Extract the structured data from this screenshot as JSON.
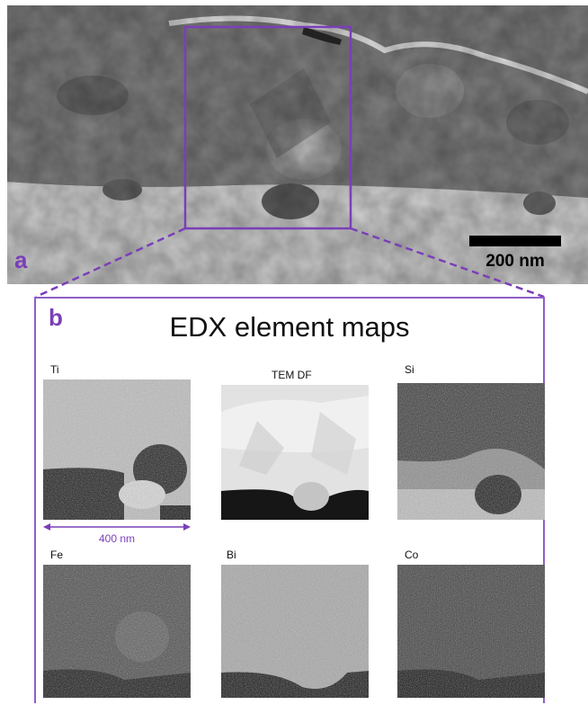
{
  "panel_a": {
    "letter": "a",
    "scale_bar_label": "200 nm"
  },
  "panel_b": {
    "letter": "b",
    "title": "EDX element maps",
    "dimension_label": "400 nm",
    "maps": [
      {
        "label": "Ti"
      },
      {
        "label": "TEM DF"
      },
      {
        "label": "Si"
      },
      {
        "label": "Fe"
      },
      {
        "label": "Bi"
      },
      {
        "label": "Co"
      }
    ]
  },
  "colors": {
    "accent": "#7a3fb8",
    "frame": "#8f5fc8"
  }
}
